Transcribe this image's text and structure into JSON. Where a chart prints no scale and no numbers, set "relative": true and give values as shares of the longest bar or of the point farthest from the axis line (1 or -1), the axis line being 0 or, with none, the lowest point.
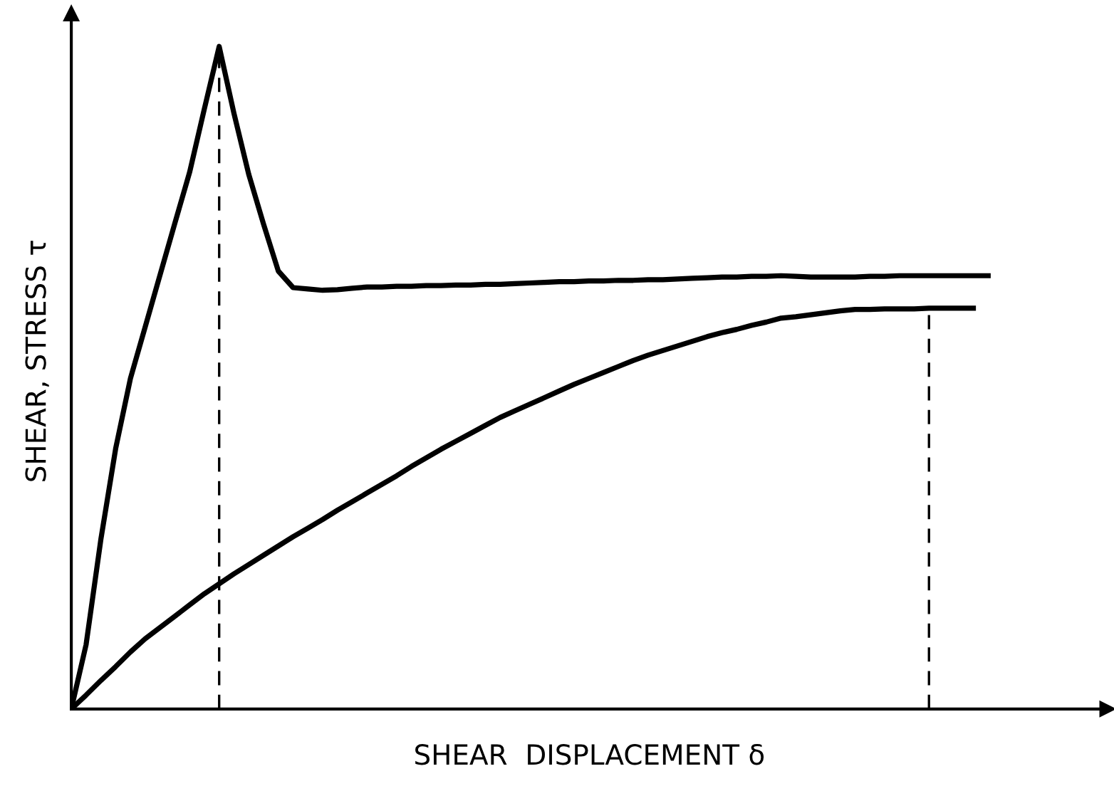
{
  "chart_data": {
    "type": "line",
    "relative": true,
    "xlabel": "SHEAR  DISPLACEMENT δ",
    "ylabel": "SHEAR, STRESS τ",
    "legend": false,
    "marker": "none",
    "line_style": "solid",
    "categories": [
      null,
      null,
      null,
      null,
      null,
      null,
      null,
      null,
      null,
      null,
      null,
      null,
      null,
      null,
      null,
      null,
      null,
      null,
      null,
      null,
      null,
      null,
      null,
      null,
      null,
      null,
      null,
      null,
      null,
      null,
      null,
      null,
      null,
      null,
      null,
      null,
      null,
      null,
      null,
      null,
      null,
      null,
      null,
      null,
      null,
      null,
      null,
      null,
      null,
      null,
      null,
      null,
      null,
      null,
      null,
      null,
      null,
      null,
      null,
      null,
      null,
      null,
      null
    ],
    "series": [
      {
        "color": "#000000",
        "values": [
          0,
          0.097,
          0.256,
          0.393,
          0.499,
          0.577,
          0.655,
          0.733,
          0.81,
          0.906,
          1.0,
          0.899,
          0.807,
          0.732,
          0.661,
          0.636,
          0.634,
          0.632,
          0.633,
          0.635,
          0.637,
          0.637,
          0.638,
          0.638,
          0.639,
          0.639,
          0.64,
          0.64,
          0.641,
          0.641,
          0.642,
          0.643,
          0.644,
          0.645,
          0.645,
          0.646,
          0.646,
          0.647,
          0.647,
          0.648,
          0.648,
          0.649,
          0.65,
          0.651,
          0.652,
          0.652,
          0.653,
          0.653,
          0.654,
          0.653,
          0.652,
          0.652,
          0.652,
          0.652,
          0.653,
          0.653,
          0.654,
          0.654,
          0.654,
          0.654,
          0.654,
          0.654,
          0.654
        ]
      },
      {
        "color": "#000000",
        "values": [
          0,
          0.021,
          0.043,
          0.064,
          0.086,
          0.106,
          0.123,
          0.14,
          0.157,
          0.174,
          0.189,
          0.204,
          0.218,
          0.232,
          0.246,
          0.26,
          0.273,
          0.286,
          0.3,
          0.313,
          0.326,
          0.339,
          0.352,
          0.366,
          0.379,
          0.392,
          0.404,
          0.416,
          0.428,
          0.44,
          0.45,
          0.46,
          0.47,
          0.48,
          0.49,
          0.499,
          0.508,
          0.517,
          0.526,
          0.534,
          0.541,
          0.548,
          0.555,
          0.562,
          0.568,
          0.573,
          0.579,
          0.584,
          0.59,
          0.592,
          0.595,
          0.598,
          0.601,
          0.603,
          0.603,
          0.604,
          0.604,
          0.604,
          0.605,
          0.605,
          0.605,
          0.605,
          null
        ]
      }
    ]
  }
}
